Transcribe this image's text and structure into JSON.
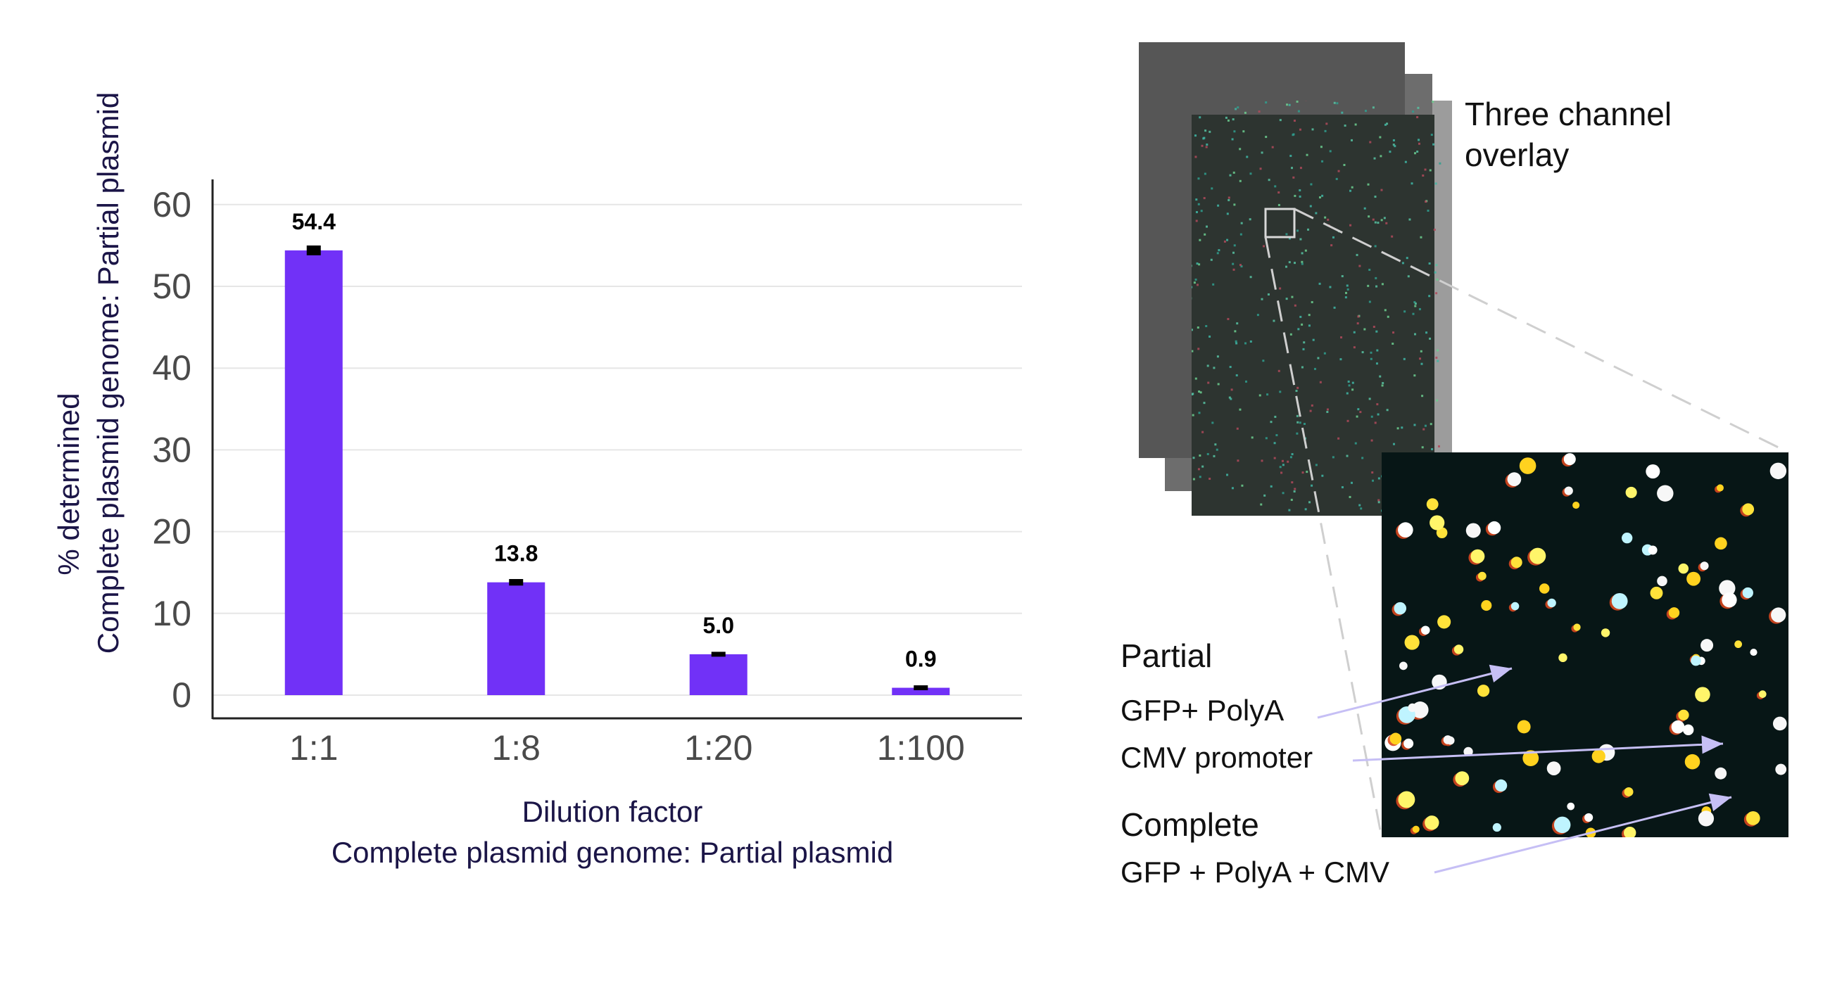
{
  "chart_data": {
    "type": "bar",
    "categories": [
      "1:1",
      "1:8",
      "1:20",
      "1:100"
    ],
    "values": [
      54.4,
      13.8,
      5.0,
      0.9
    ],
    "data_labels": [
      "54.4",
      "13.8",
      "5.0",
      "0.9"
    ],
    "error": [
      0.6,
      0.4,
      0.3,
      0.3
    ],
    "ylim": [
      0,
      62
    ],
    "yticks": [
      0,
      10,
      20,
      30,
      40,
      50,
      60
    ],
    "xlabel_lines": [
      "Dilution factor",
      "Complete plasmid genome: Partial plasmid"
    ],
    "ylabel_lines": [
      "% determined",
      "Complete plasmid genome: Partial plasmid"
    ],
    "grid": true,
    "colors": {
      "bar": "#7131f7",
      "error": "#000000",
      "axis": "#222222",
      "grid": "#e6e6e6",
      "title": "#1b1547"
    }
  },
  "panel": {
    "overlay_label_lines": [
      "Three channel",
      "overlay"
    ],
    "partial_heading": "Partial",
    "partial_items": [
      "GFP+ PolyA",
      "CMV promoter"
    ],
    "complete_heading": "Complete",
    "complete_items": [
      "GFP + PolyA + CMV"
    ],
    "arrow_color": "#c6bff5"
  }
}
